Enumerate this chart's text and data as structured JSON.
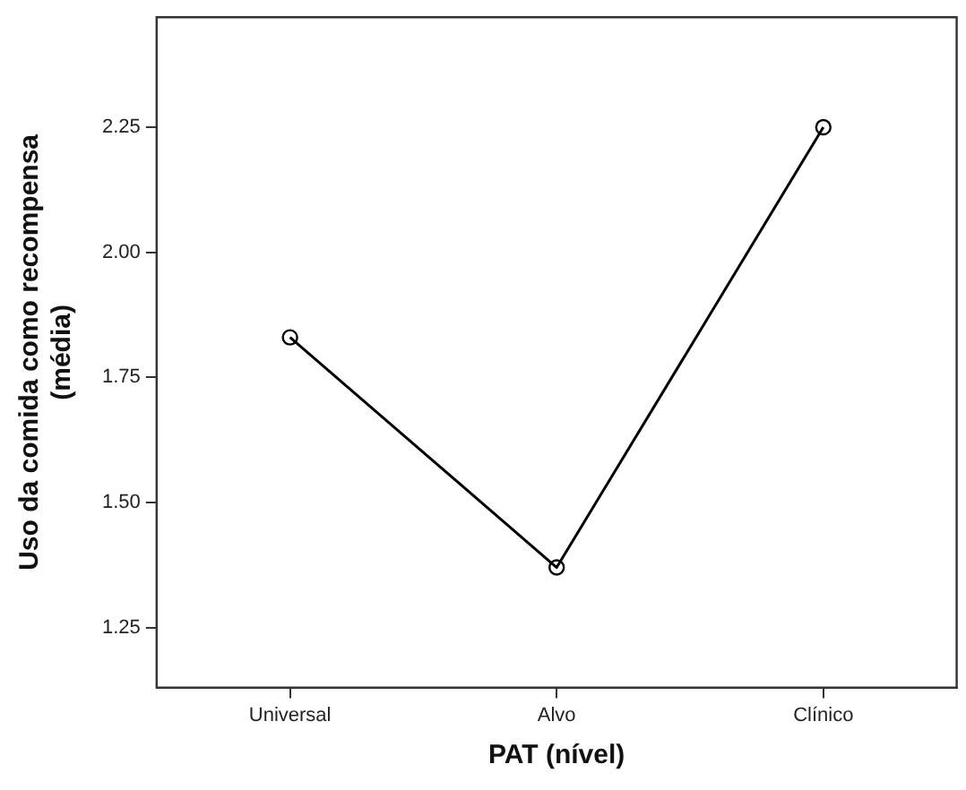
{
  "chart_data": {
    "type": "line",
    "xlabel": "PAT (nível)",
    "ylabel": "Uso da comida como recompensa\n(média)",
    "categories": [
      "Universal",
      "Alvo",
      "Clínico"
    ],
    "series": [
      {
        "color": "#000000",
        "values": [
          1.83,
          1.37,
          2.25
        ]
      }
    ],
    "ylim": [
      1.13,
      2.47
    ],
    "yticks": [
      1.25,
      {
        "value": 1.5,
        "label": "1.50"
      },
      1.75,
      {
        "value": 2,
        "label": "2.00"
      },
      2.25
    ],
    "marker": "circle",
    "line_style": "solid",
    "grid": false,
    "legend": false
  }
}
